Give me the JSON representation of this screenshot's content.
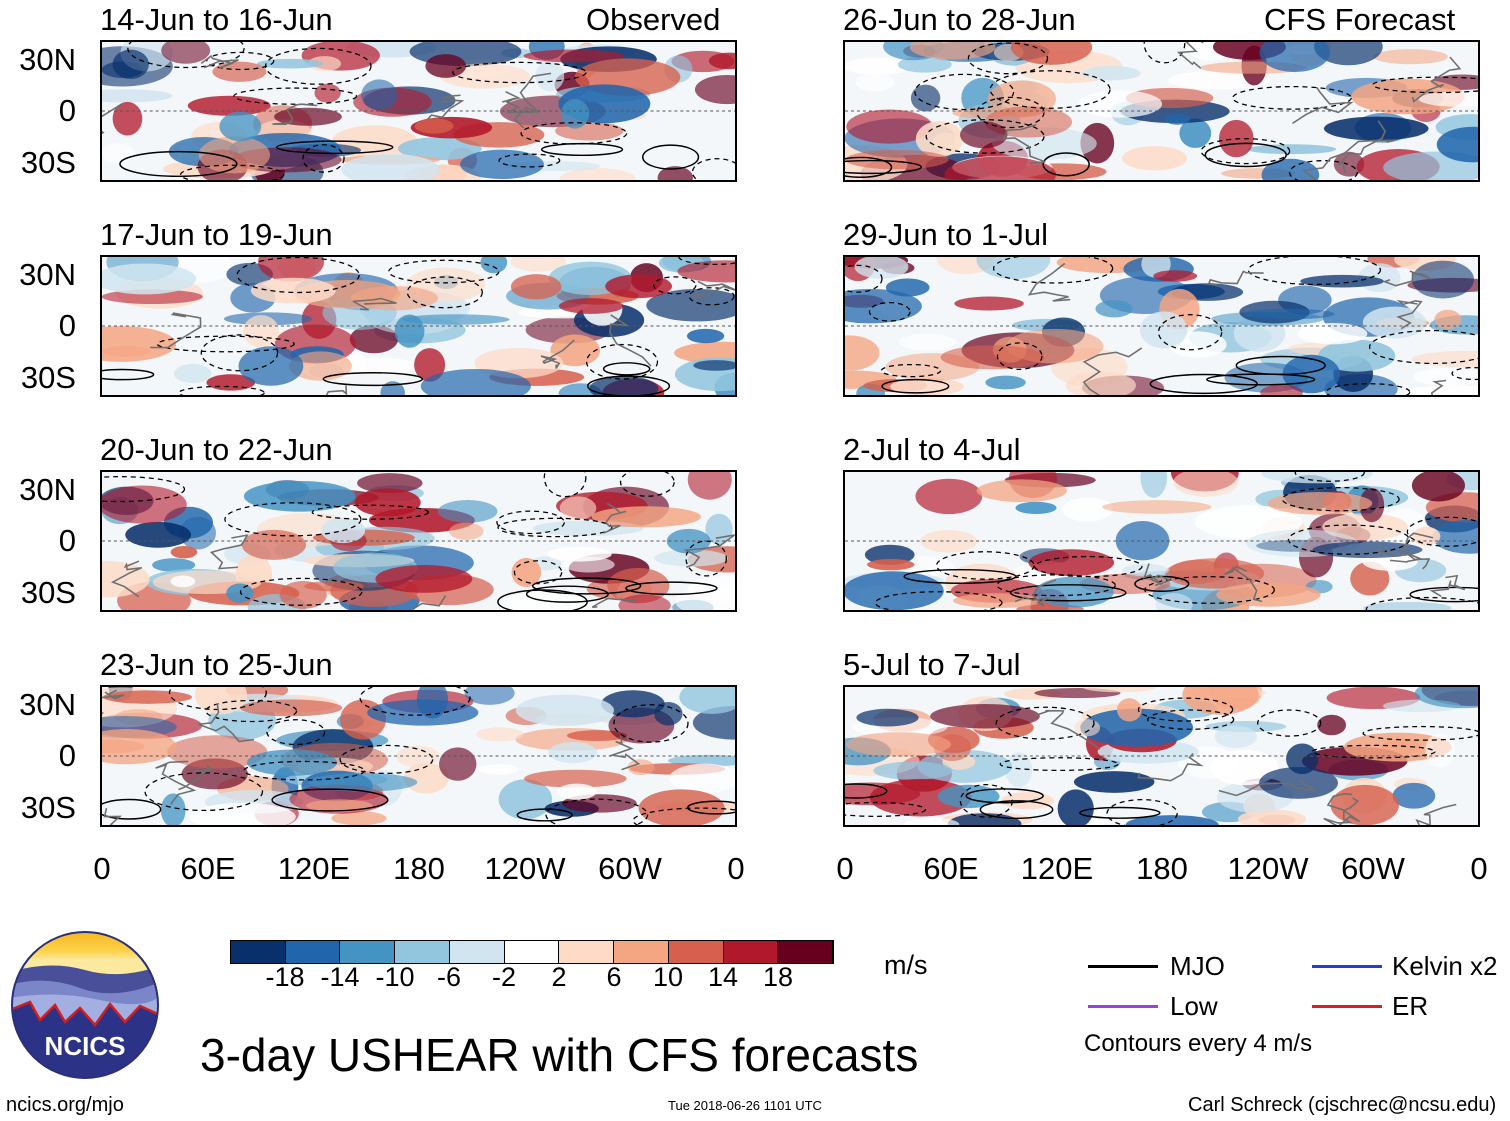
{
  "panels_left": [
    {
      "title": "14-Jun to 16-Jun",
      "corner": "Observed"
    },
    {
      "title": "17-Jun to 19-Jun",
      "corner": ""
    },
    {
      "title": "20-Jun to 22-Jun",
      "corner": ""
    },
    {
      "title": "23-Jun to 25-Jun",
      "corner": ""
    }
  ],
  "panels_right": [
    {
      "title": "26-Jun to 28-Jun",
      "corner": "CFS Forecast"
    },
    {
      "title": "29-Jun to 1-Jul",
      "corner": ""
    },
    {
      "title": "2-Jul to 4-Jul",
      "corner": ""
    },
    {
      "title": "5-Jul to 7-Jul",
      "corner": ""
    }
  ],
  "y_labels": [
    "30N",
    "0",
    "30S"
  ],
  "x_labels": [
    "0",
    "60E",
    "120E",
    "180",
    "120W",
    "60W",
    "0"
  ],
  "colorbar": {
    "colors": [
      "#08306b",
      "#2166ac",
      "#4393c3",
      "#92c5de",
      "#d1e5f0",
      "#ffffff",
      "#fddbc7",
      "#f4a582",
      "#d6604d",
      "#b2182b",
      "#67001f"
    ],
    "ticks": [
      "-18",
      "-14",
      "-10",
      "-6",
      "-2",
      "2",
      "6",
      "10",
      "14",
      "18"
    ],
    "units": "m/s"
  },
  "legend": {
    "items": [
      {
        "label": "MJO",
        "color": "#000000"
      },
      {
        "label": "Kelvin x2",
        "color": "#1f3fd1"
      },
      {
        "label": "Low",
        "color": "#9b3fe0"
      },
      {
        "label": "ER",
        "color": "#d62020"
      }
    ],
    "note": "Contours every 4 m/s"
  },
  "main_title": "3-day USHEAR with CFS forecasts",
  "logo_text": "NCICS",
  "footer": {
    "left": "ncics.org/mjo",
    "center": "Tue 2018-06-26 1101 UTC",
    "right": "Carl Schreck (cjschrec@ncsu.edu)"
  }
}
